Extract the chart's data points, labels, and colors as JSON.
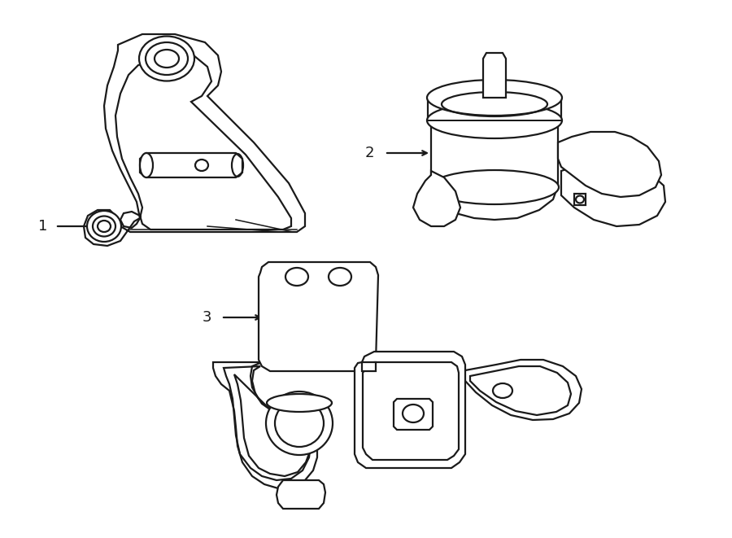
{
  "bg_color": "#ffffff",
  "line_color": "#1a1a1a",
  "line_width": 1.6,
  "label_fontsize": 13,
  "figsize": [
    9.0,
    6.61
  ],
  "dpi": 100
}
